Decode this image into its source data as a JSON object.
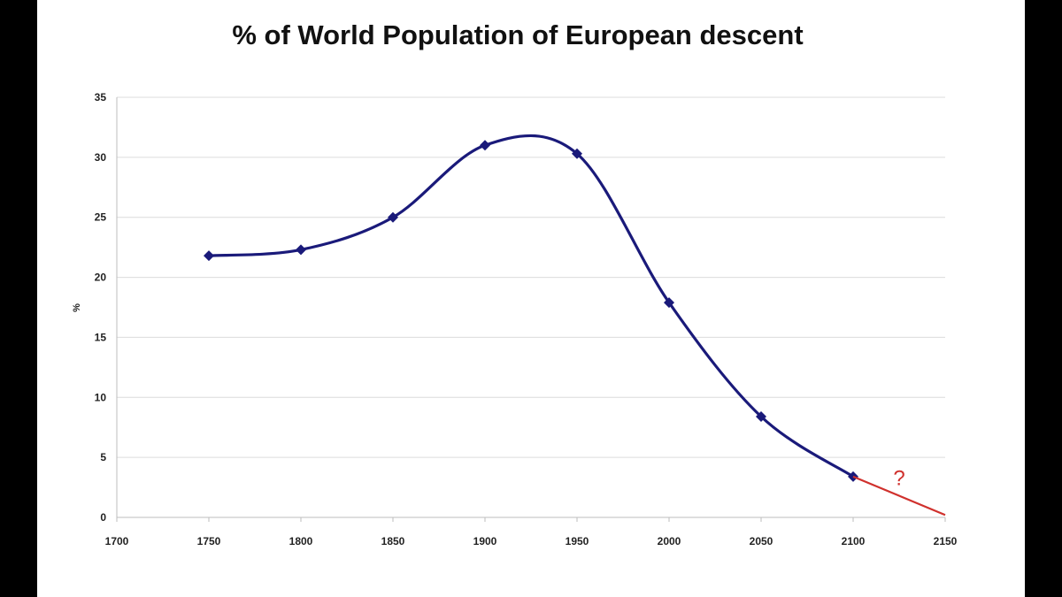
{
  "chart_data": {
    "type": "line",
    "title": "% of World Population of European descent",
    "ylabel": "%",
    "xlabel": "",
    "xlim": [
      1700,
      2150
    ],
    "ylim": [
      0,
      35
    ],
    "x_ticks": [
      "1700",
      "1750",
      "1800",
      "1850",
      "1900",
      "1950",
      "2000",
      "2050",
      "2100",
      "2150"
    ],
    "y_ticks": [
      "0",
      "5",
      "10",
      "15",
      "20",
      "25",
      "30",
      "35"
    ],
    "grid": "horizontal",
    "legend": "none",
    "series": [
      {
        "color": "#1a1a7a",
        "marker": "diamond",
        "smooth": true,
        "x": [
          1750,
          1800,
          1850,
          1900,
          1950,
          2000,
          2050,
          2100
        ],
        "y": [
          21.8,
          22.3,
          25.0,
          31.0,
          30.3,
          17.9,
          8.4,
          3.4
        ]
      }
    ],
    "projection": {
      "color": "#d0312d",
      "x": [
        2100,
        2150
      ],
      "y": [
        3.4,
        0.2
      ],
      "annotation": "?"
    }
  }
}
